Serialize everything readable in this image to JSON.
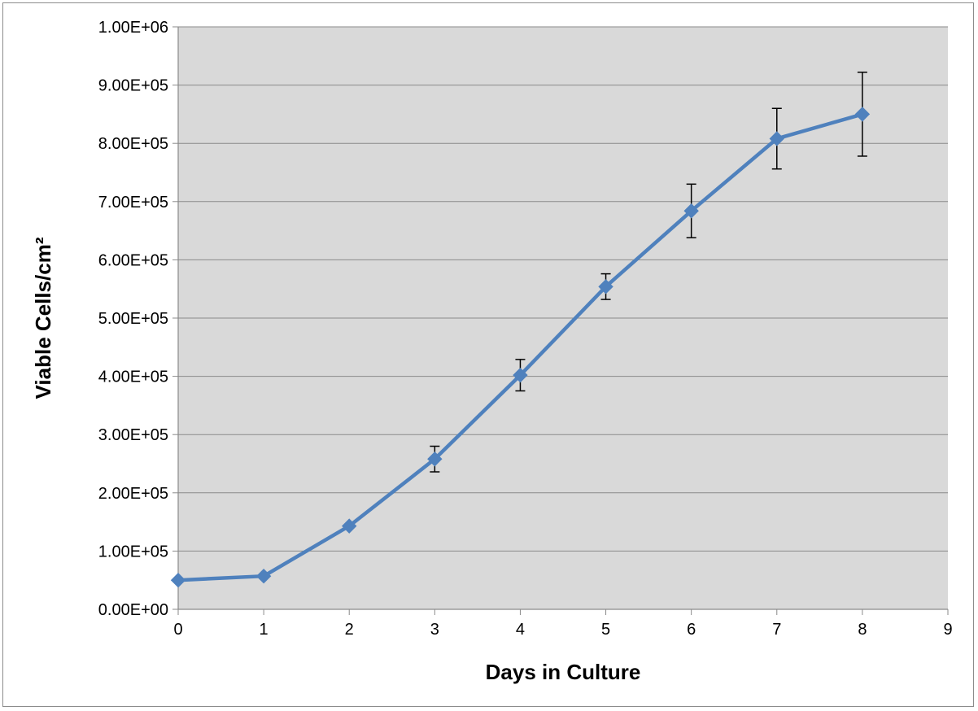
{
  "chart_data": {
    "type": "line",
    "title": "",
    "xlabel": "Days in Culture",
    "ylabel": "Viable Cells/cm²",
    "xlim": [
      0,
      9
    ],
    "ylim": [
      0,
      1000000
    ],
    "x_ticks": [
      "0",
      "1",
      "2",
      "3",
      "4",
      "5",
      "6",
      "7",
      "8",
      "9"
    ],
    "y_ticks": [
      "0.00E+00",
      "1.00E+05",
      "2.00E+05",
      "3.00E+05",
      "4.00E+05",
      "5.00E+05",
      "6.00E+05",
      "7.00E+05",
      "8.00E+05",
      "9.00E+05",
      "1.00E+06"
    ],
    "grid": true,
    "legend": "none",
    "plot_background": "#d9d9d9",
    "series": [
      {
        "color": "#4f81bd",
        "marker": "diamond",
        "x": [
          0,
          1,
          2,
          3,
          4,
          5,
          6,
          7,
          8
        ],
        "y": [
          50000,
          57000,
          143000,
          258000,
          402000,
          554000,
          684000,
          808000,
          850000
        ],
        "error": [
          0,
          0,
          0,
          22000,
          27000,
          22000,
          46000,
          52000,
          72000
        ]
      }
    ]
  }
}
